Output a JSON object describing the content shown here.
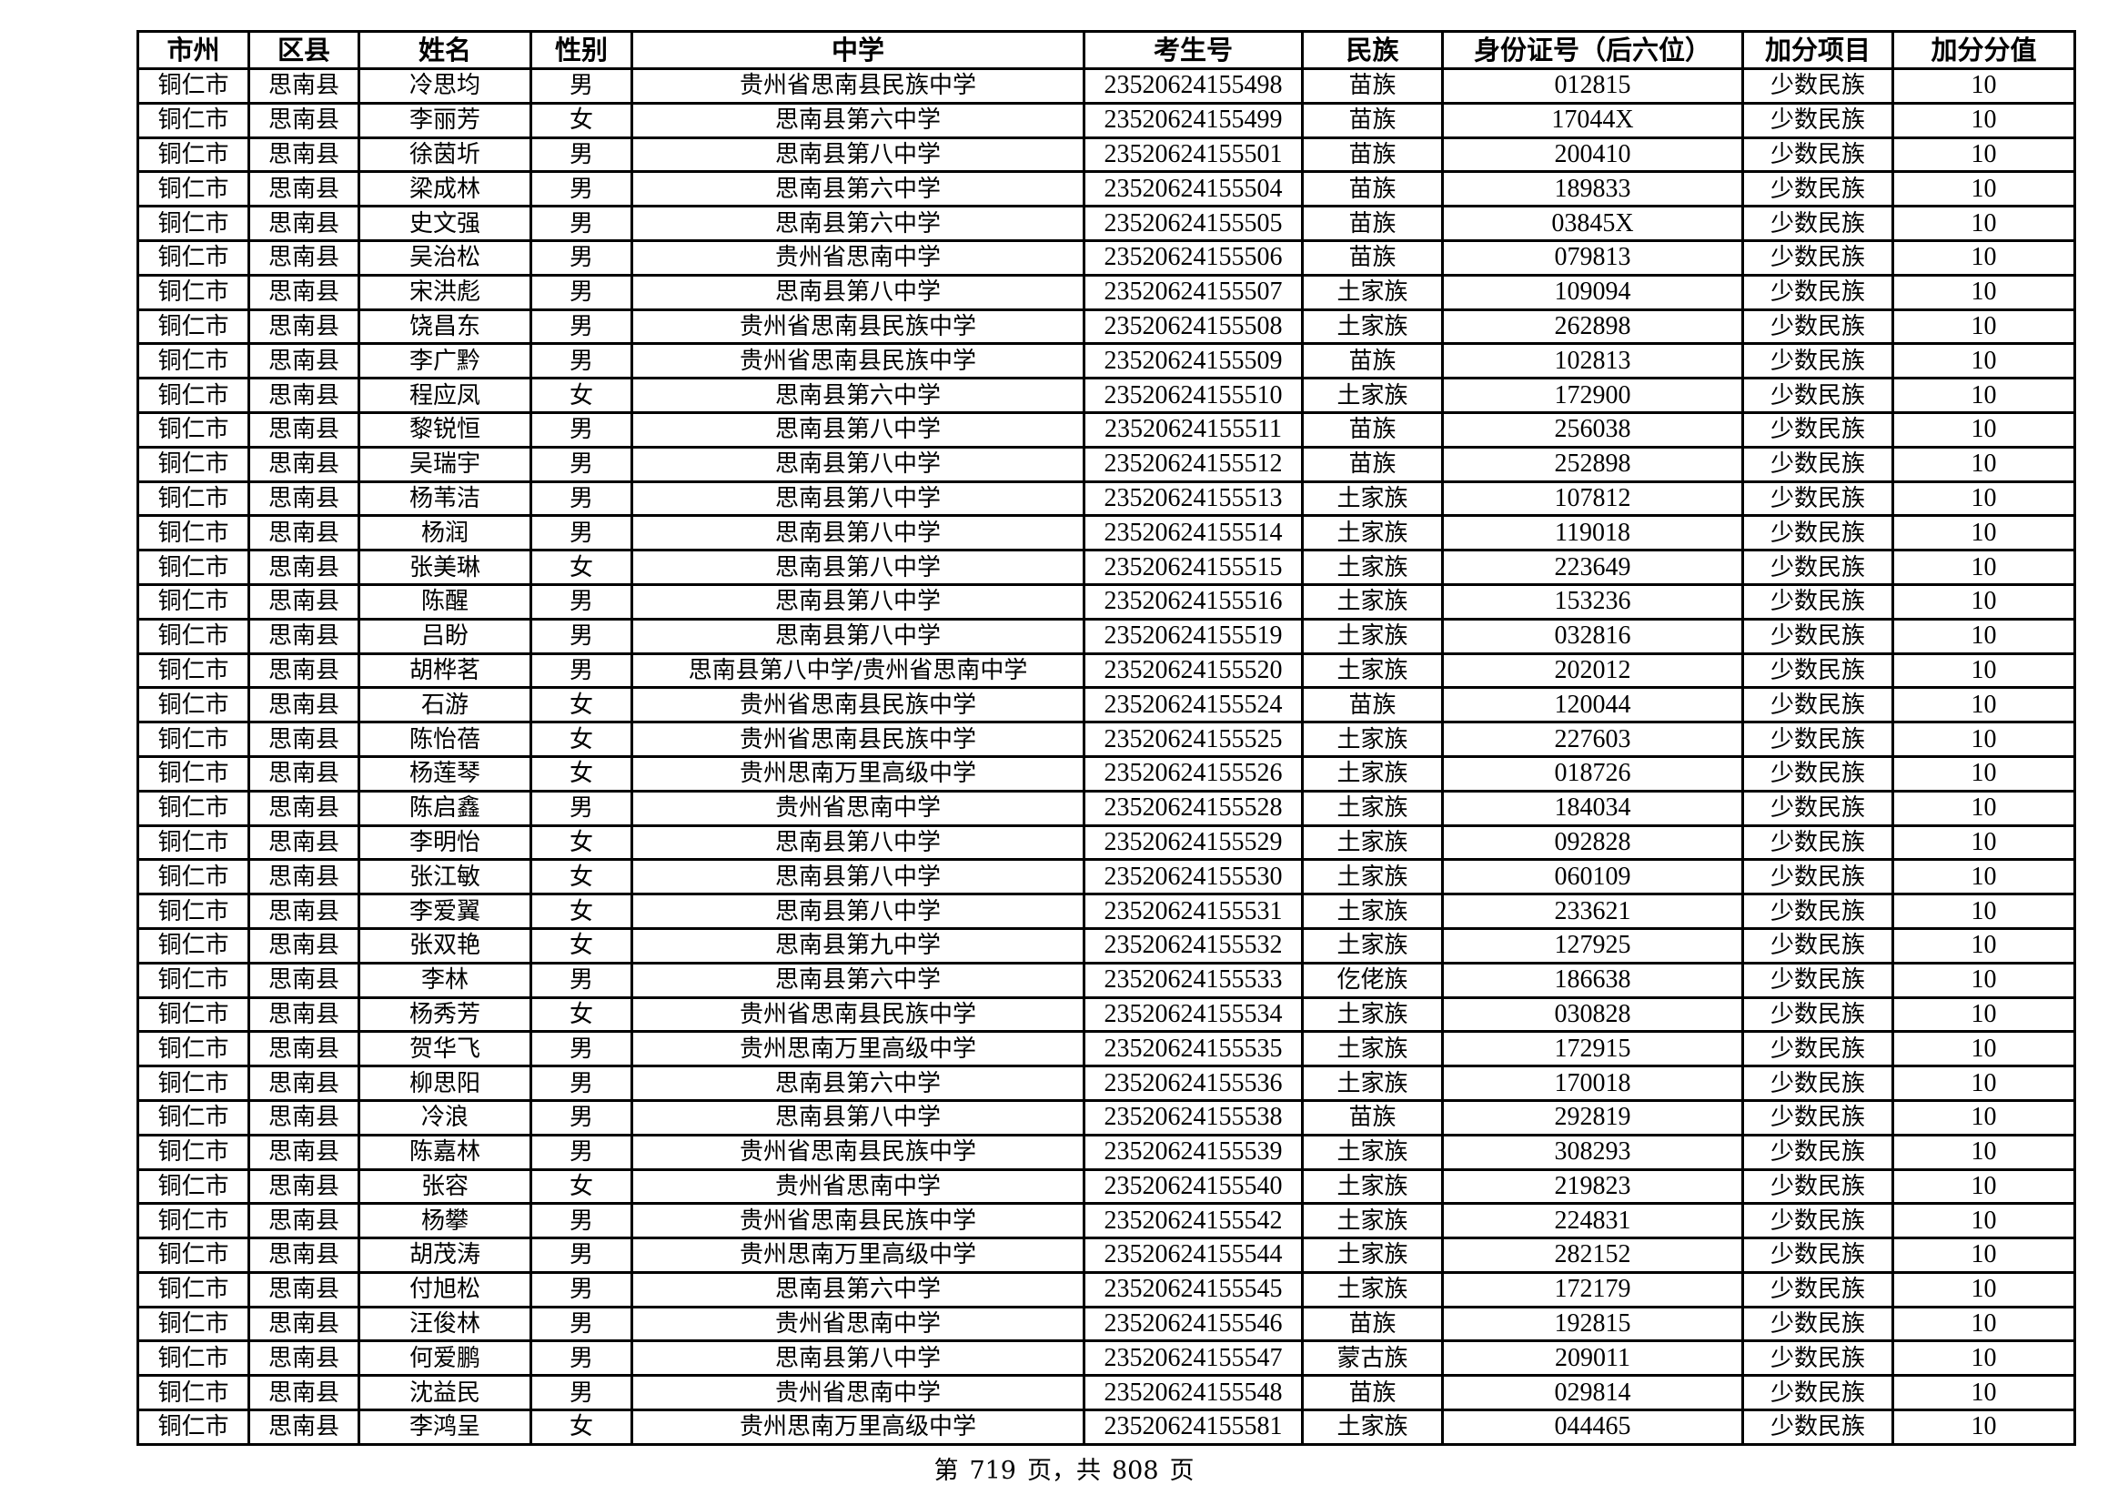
{
  "table": {
    "headers": [
      "市州",
      "区县",
      "姓名",
      "性别",
      "中学",
      "考生号",
      "民族",
      "身份证号（后六位）",
      "加分项目",
      "加分分值"
    ],
    "rows": [
      [
        "铜仁市",
        "思南县",
        "冷思均",
        "男",
        "贵州省思南县民族中学",
        "23520624155498",
        "苗族",
        "012815",
        "少数民族",
        "10"
      ],
      [
        "铜仁市",
        "思南县",
        "李丽芳",
        "女",
        "思南县第六中学",
        "23520624155499",
        "苗族",
        "17044X",
        "少数民族",
        "10"
      ],
      [
        "铜仁市",
        "思南县",
        "徐茵圻",
        "男",
        "思南县第八中学",
        "23520624155501",
        "苗族",
        "200410",
        "少数民族",
        "10"
      ],
      [
        "铜仁市",
        "思南县",
        "梁成林",
        "男",
        "思南县第六中学",
        "23520624155504",
        "苗族",
        "189833",
        "少数民族",
        "10"
      ],
      [
        "铜仁市",
        "思南县",
        "史文强",
        "男",
        "思南县第六中学",
        "23520624155505",
        "苗族",
        "03845X",
        "少数民族",
        "10"
      ],
      [
        "铜仁市",
        "思南县",
        "吴治松",
        "男",
        "贵州省思南中学",
        "23520624155506",
        "苗族",
        "079813",
        "少数民族",
        "10"
      ],
      [
        "铜仁市",
        "思南县",
        "宋洪彪",
        "男",
        "思南县第八中学",
        "23520624155507",
        "土家族",
        "109094",
        "少数民族",
        "10"
      ],
      [
        "铜仁市",
        "思南县",
        "饶昌东",
        "男",
        "贵州省思南县民族中学",
        "23520624155508",
        "土家族",
        "262898",
        "少数民族",
        "10"
      ],
      [
        "铜仁市",
        "思南县",
        "李广黔",
        "男",
        "贵州省思南县民族中学",
        "23520624155509",
        "苗族",
        "102813",
        "少数民族",
        "10"
      ],
      [
        "铜仁市",
        "思南县",
        "程应凤",
        "女",
        "思南县第六中学",
        "23520624155510",
        "土家族",
        "172900",
        "少数民族",
        "10"
      ],
      [
        "铜仁市",
        "思南县",
        "黎锐恒",
        "男",
        "思南县第八中学",
        "23520624155511",
        "苗族",
        "256038",
        "少数民族",
        "10"
      ],
      [
        "铜仁市",
        "思南县",
        "吴瑞宇",
        "男",
        "思南县第八中学",
        "23520624155512",
        "苗族",
        "252898",
        "少数民族",
        "10"
      ],
      [
        "铜仁市",
        "思南县",
        "杨苇洁",
        "男",
        "思南县第八中学",
        "23520624155513",
        "土家族",
        "107812",
        "少数民族",
        "10"
      ],
      [
        "铜仁市",
        "思南县",
        "杨润",
        "男",
        "思南县第八中学",
        "23520624155514",
        "土家族",
        "119018",
        "少数民族",
        "10"
      ],
      [
        "铜仁市",
        "思南县",
        "张美琳",
        "女",
        "思南县第八中学",
        "23520624155515",
        "土家族",
        "223649",
        "少数民族",
        "10"
      ],
      [
        "铜仁市",
        "思南县",
        "陈醒",
        "男",
        "思南县第八中学",
        "23520624155516",
        "土家族",
        "153236",
        "少数民族",
        "10"
      ],
      [
        "铜仁市",
        "思南县",
        "吕盼",
        "男",
        "思南县第八中学",
        "23520624155519",
        "土家族",
        "032816",
        "少数民族",
        "10"
      ],
      [
        "铜仁市",
        "思南县",
        "胡桦茗",
        "男",
        "思南县第八中学/贵州省思南中学",
        "23520624155520",
        "土家族",
        "202012",
        "少数民族",
        "10"
      ],
      [
        "铜仁市",
        "思南县",
        "石游",
        "女",
        "贵州省思南县民族中学",
        "23520624155524",
        "苗族",
        "120044",
        "少数民族",
        "10"
      ],
      [
        "铜仁市",
        "思南县",
        "陈怡蓓",
        "女",
        "贵州省思南县民族中学",
        "23520624155525",
        "土家族",
        "227603",
        "少数民族",
        "10"
      ],
      [
        "铜仁市",
        "思南县",
        "杨莲琴",
        "女",
        "贵州思南万里高级中学",
        "23520624155526",
        "土家族",
        "018726",
        "少数民族",
        "10"
      ],
      [
        "铜仁市",
        "思南县",
        "陈启鑫",
        "男",
        "贵州省思南中学",
        "23520624155528",
        "土家族",
        "184034",
        "少数民族",
        "10"
      ],
      [
        "铜仁市",
        "思南县",
        "李明怡",
        "女",
        "思南县第八中学",
        "23520624155529",
        "土家族",
        "092828",
        "少数民族",
        "10"
      ],
      [
        "铜仁市",
        "思南县",
        "张江敏",
        "女",
        "思南县第八中学",
        "23520624155530",
        "土家族",
        "060109",
        "少数民族",
        "10"
      ],
      [
        "铜仁市",
        "思南县",
        "李爱翼",
        "女",
        "思南县第八中学",
        "23520624155531",
        "土家族",
        "233621",
        "少数民族",
        "10"
      ],
      [
        "铜仁市",
        "思南县",
        "张双艳",
        "女",
        "思南县第九中学",
        "23520624155532",
        "土家族",
        "127925",
        "少数民族",
        "10"
      ],
      [
        "铜仁市",
        "思南县",
        "李林",
        "男",
        "思南县第六中学",
        "23520624155533",
        "仡佬族",
        "186638",
        "少数民族",
        "10"
      ],
      [
        "铜仁市",
        "思南县",
        "杨秀芳",
        "女",
        "贵州省思南县民族中学",
        "23520624155534",
        "土家族",
        "030828",
        "少数民族",
        "10"
      ],
      [
        "铜仁市",
        "思南县",
        "贺华飞",
        "男",
        "贵州思南万里高级中学",
        "23520624155535",
        "土家族",
        "172915",
        "少数民族",
        "10"
      ],
      [
        "铜仁市",
        "思南县",
        "柳思阳",
        "男",
        "思南县第六中学",
        "23520624155536",
        "土家族",
        "170018",
        "少数民族",
        "10"
      ],
      [
        "铜仁市",
        "思南县",
        "冷浪",
        "男",
        "思南县第八中学",
        "23520624155538",
        "苗族",
        "292819",
        "少数民族",
        "10"
      ],
      [
        "铜仁市",
        "思南县",
        "陈嘉林",
        "男",
        "贵州省思南县民族中学",
        "23520624155539",
        "土家族",
        "308293",
        "少数民族",
        "10"
      ],
      [
        "铜仁市",
        "思南县",
        "张容",
        "女",
        "贵州省思南中学",
        "23520624155540",
        "土家族",
        "219823",
        "少数民族",
        "10"
      ],
      [
        "铜仁市",
        "思南县",
        "杨攀",
        "男",
        "贵州省思南县民族中学",
        "23520624155542",
        "土家族",
        "224831",
        "少数民族",
        "10"
      ],
      [
        "铜仁市",
        "思南县",
        "胡茂涛",
        "男",
        "贵州思南万里高级中学",
        "23520624155544",
        "土家族",
        "282152",
        "少数民族",
        "10"
      ],
      [
        "铜仁市",
        "思南县",
        "付旭松",
        "男",
        "思南县第六中学",
        "23520624155545",
        "土家族",
        "172179",
        "少数民族",
        "10"
      ],
      [
        "铜仁市",
        "思南县",
        "汪俊林",
        "男",
        "贵州省思南中学",
        "23520624155546",
        "苗族",
        "192815",
        "少数民族",
        "10"
      ],
      [
        "铜仁市",
        "思南县",
        "何爱鹏",
        "男",
        "思南县第八中学",
        "23520624155547",
        "蒙古族",
        "209011",
        "少数民族",
        "10"
      ],
      [
        "铜仁市",
        "思南县",
        "沈益民",
        "男",
        "贵州省思南中学",
        "23520624155548",
        "苗族",
        "029814",
        "少数民族",
        "10"
      ],
      [
        "铜仁市",
        "思南县",
        "李鸿呈",
        "女",
        "贵州思南万里高级中学",
        "23520624155581",
        "土家族",
        "044465",
        "少数民族",
        "10"
      ]
    ]
  },
  "footer": {
    "page_prefix": "第",
    "current_page": "719",
    "page_mid": "页，共",
    "total_pages": "808",
    "page_suffix": "页"
  }
}
